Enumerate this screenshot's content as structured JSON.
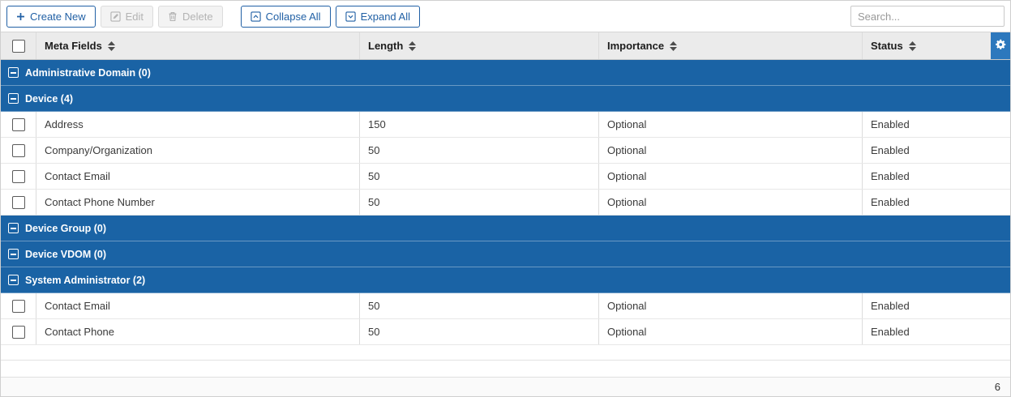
{
  "toolbar": {
    "create_new_label": "Create New",
    "edit_label": "Edit",
    "delete_label": "Delete",
    "collapse_all_label": "Collapse All",
    "expand_all_label": "Expand All",
    "search_placeholder": "Search...",
    "search_value": ""
  },
  "table": {
    "columns": [
      "Meta Fields",
      "Length",
      "Importance",
      "Status"
    ],
    "groups": [
      {
        "label": "Administrative Domain (0)",
        "rows": []
      },
      {
        "label": "Device (4)",
        "rows": [
          {
            "name": "Address",
            "length": "150",
            "importance": "Optional",
            "status": "Enabled"
          },
          {
            "name": "Company/Organization",
            "length": "50",
            "importance": "Optional",
            "status": "Enabled"
          },
          {
            "name": "Contact Email",
            "length": "50",
            "importance": "Optional",
            "status": "Enabled"
          },
          {
            "name": "Contact Phone Number",
            "length": "50",
            "importance": "Optional",
            "status": "Enabled"
          }
        ]
      },
      {
        "label": "Device Group (0)",
        "rows": []
      },
      {
        "label": "Device VDOM (0)",
        "rows": []
      },
      {
        "label": "System Administrator (2)",
        "rows": [
          {
            "name": "Contact Email",
            "length": "50",
            "importance": "Optional",
            "status": "Enabled"
          },
          {
            "name": "Contact Phone",
            "length": "50",
            "importance": "Optional",
            "status": "Enabled"
          }
        ]
      }
    ]
  },
  "footer": {
    "count": "6"
  },
  "icons": {
    "create_new": "plus-icon",
    "edit": "pencil-square-icon",
    "delete": "trash-icon",
    "collapse_all": "box-chevron-up-icon",
    "expand_all": "box-chevron-down-icon",
    "header_settings": "gear-icon",
    "column_sort": "sort-arrows-icon",
    "group_toggle": "minus-square-icon"
  },
  "colors": {
    "accent_blue": "#2160a5",
    "group_row_bg": "#1a63a5",
    "gear_button_bg": "#2d78bd",
    "header_bg": "#ebebeb"
  }
}
